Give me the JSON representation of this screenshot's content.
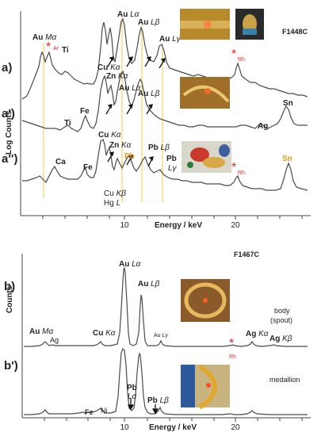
{
  "figure": {
    "top": {
      "sample_id": "F1448C",
      "ylabel": "Log  Counts",
      "xlabel": "Energy / keV",
      "xticks": [
        "10",
        "20"
      ],
      "panel_labels": [
        "a)",
        "a')",
        "a'')"
      ]
    },
    "bottom": {
      "sample_id": "F1467C",
      "ylabel": "Counts",
      "xlabel": "Energy / keV",
      "xticks": [
        "10",
        "20"
      ],
      "panel_labels": [
        "b)",
        "b')"
      ],
      "side_labels": [
        "body",
        "(spout)",
        "medallion"
      ]
    }
  },
  "labels": {
    "au_ma": "Au",
    "ma": "Mα",
    "au_la": "Au",
    "la": "Lα",
    "au_lb": "Au",
    "lb": "Lβ",
    "au_lg": "Au",
    "lg": "Lγ",
    "ar": "Ar",
    "ti": "Ti",
    "ti2": "Ti",
    "rh": "Rh",
    "star": "*",
    "cu_ka": "Cu",
    "ka": "Kα",
    "zn_ka": "Zn",
    "zn_ka_sub": "Kα",
    "au_la2": "Au",
    "la2": "Lα",
    "au_lb2": "Au",
    "lb2": "Lβ",
    "fe": "Fe",
    "fe2": "Fe",
    "ag": "Ag",
    "sn": "Sn",
    "sn2": "Sn",
    "ca": "Ca",
    "cu_ka3": "Cu",
    "ka3": "Kα",
    "zn_ka3": "Zn",
    "ka3b": "Kα",
    "pb_orange": "Pb",
    "pb_lb": "Pb",
    "lb3": "Lβ",
    "pb_lg": "Pb",
    "lg3": "Lγ",
    "cu_kb": "Cu",
    "kb": "Kβ",
    "hg_l": "Hg",
    "l": "L",
    "rh3": "Rh",
    "b_au_la": "Au",
    "b_la": "Lα",
    "b_au_lb": "Au",
    "b_lb": "Lβ",
    "b_au_ma": "Au",
    "b_ma": "Mα",
    "b_ag": "Ag",
    "b_cu_ka": "Cu",
    "b_ka": "Kα",
    "b_au_lg": "Au",
    "b_lg": "Lγ",
    "b_ag_ka": "Ag",
    "b_agka": "Kα",
    "b_ag_kb": "Ag",
    "b_agkb": "Kβ",
    "b_rh": "Rh",
    "b_fe": "Fe",
    "b_ni": "Ni",
    "b_pb_la": "Pb",
    "b_pbla": "Lα",
    "b_pb_lb": "Pb",
    "b_pblb": "Lβ"
  },
  "colors": {
    "trace": "#4a4a4a",
    "star": "#e8262b",
    "marker_line": "#f2c94c",
    "orange_label": "#e89a1c"
  },
  "chart_data": [
    {
      "type": "line",
      "title": "F1448C",
      "xlabel": "Energy / keV",
      "ylabel": "Log  Counts",
      "xlim": [
        0,
        27
      ],
      "log_scale": true,
      "markers_keV": [
        2.12,
        9.71,
        11.44,
        13.38
      ],
      "series": [
        {
          "name": "a)",
          "peaks_keV": [
            {
              "x": 2.12,
              "label": "Au Mα"
            },
            {
              "x": 2.96,
              "label": "Ar"
            },
            {
              "x": 4.51,
              "label": "Ti"
            },
            {
              "x": 8.05,
              "label": "Cu Kα"
            },
            {
              "x": 8.64,
              "label": "Zn Kα"
            },
            {
              "x": 9.71,
              "label": "Au Lα"
            },
            {
              "x": 11.44,
              "label": "Au Lβ"
            },
            {
              "x": 13.38,
              "label": "Au Lγ"
            },
            {
              "x": 20.2,
              "label": "Rh"
            }
          ]
        },
        {
          "name": "a')",
          "peaks_keV": [
            {
              "x": 4.51,
              "label": "Ti"
            },
            {
              "x": 6.4,
              "label": "Fe"
            },
            {
              "x": 8.05,
              "label": "Cu Kα"
            },
            {
              "x": 8.64,
              "label": "Zn Kα"
            },
            {
              "x": 9.71,
              "label": "Au Lα"
            },
            {
              "x": 11.44,
              "label": "Au Lβ"
            },
            {
              "x": 22.1,
              "label": "Ag"
            },
            {
              "x": 25.2,
              "label": "Sn"
            }
          ]
        },
        {
          "name": "a'')",
          "peaks_keV": [
            {
              "x": 3.69,
              "label": "Ca"
            },
            {
              "x": 6.4,
              "label": "Fe"
            },
            {
              "x": 8.05,
              "label": "Cu Kα"
            },
            {
              "x": 8.64,
              "label": "Zn Kα"
            },
            {
              "x": 8.9,
              "label": "Cu Kβ / Hg L"
            },
            {
              "x": 10.55,
              "label": "Pb"
            },
            {
              "x": 12.61,
              "label": "Pb Lβ"
            },
            {
              "x": 14.76,
              "label": "Pb Lγ"
            },
            {
              "x": 20.2,
              "label": "Rh"
            },
            {
              "x": 25.2,
              "label": "Sn"
            }
          ]
        }
      ]
    },
    {
      "type": "line",
      "title": "F1467C",
      "xlabel": "Energy / keV",
      "ylabel": "Counts",
      "xlim": [
        0,
        27
      ],
      "series": [
        {
          "name": "b)",
          "peaks_keV": [
            {
              "x": 2.12,
              "label": "Au Mα"
            },
            {
              "x": 2.98,
              "label": "Ag"
            },
            {
              "x": 8.05,
              "label": "Cu Kα"
            },
            {
              "x": 9.71,
              "label": "Au Lα"
            },
            {
              "x": 11.44,
              "label": "Au Lβ"
            },
            {
              "x": 13.38,
              "label": "Au Lγ"
            },
            {
              "x": 20.2,
              "label": "Rh"
            },
            {
              "x": 22.1,
              "label": "Ag Kα"
            },
            {
              "x": 24.9,
              "label": "Ag Kβ"
            }
          ]
        },
        {
          "name": "b')",
          "peaks_keV": [
            {
              "x": 6.4,
              "label": "Fe"
            },
            {
              "x": 7.48,
              "label": "Ni"
            },
            {
              "x": 10.55,
              "label": "Pb Lα"
            },
            {
              "x": 12.61,
              "label": "Pb Lβ"
            }
          ]
        }
      ]
    }
  ]
}
